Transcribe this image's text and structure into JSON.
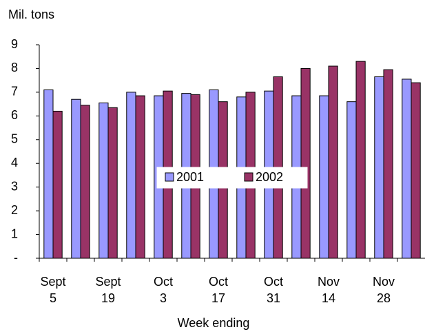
{
  "chart_data": {
    "type": "bar",
    "y_axis_label": "Mil. tons",
    "x_axis_label": "Week ending",
    "categories": [
      "Sept 5",
      null,
      "Sept 19",
      null,
      "Oct 3",
      null,
      "Oct 17",
      null,
      "Oct 31",
      null,
      "Nov 14",
      null,
      "Nov 28",
      null
    ],
    "series": [
      {
        "name": "2001",
        "color": "#9999ff",
        "values": [
          7.1,
          6.7,
          6.55,
          7.0,
          6.85,
          6.95,
          7.1,
          6.8,
          7.05,
          6.85,
          6.85,
          6.6,
          7.65,
          7.55
        ]
      },
      {
        "name": "2002",
        "color": "#993366",
        "values": [
          6.2,
          6.45,
          6.35,
          6.85,
          7.05,
          6.9,
          6.6,
          7.0,
          7.65,
          8.0,
          8.1,
          8.3,
          7.95,
          7.4
        ]
      }
    ],
    "ylim": [
      0,
      9
    ],
    "yticks": [
      {
        "value": 0,
        "label": "-"
      },
      1,
      2,
      3,
      4,
      5,
      6,
      7,
      8,
      9
    ],
    "legend": "center"
  }
}
